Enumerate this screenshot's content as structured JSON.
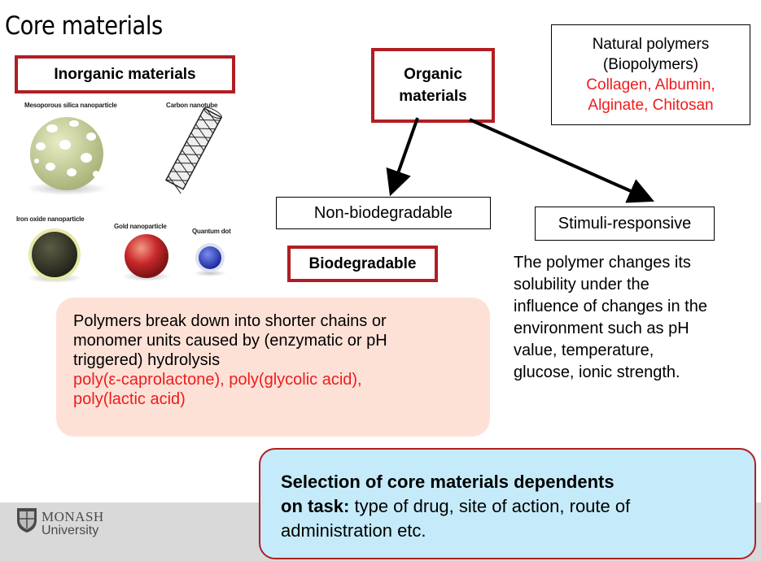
{
  "slide": {
    "title": "Core materials",
    "inorganic": {
      "heading": "Inorganic materials",
      "captions": {
        "silica": "Mesoporous silica nanoparticle",
        "nanotube": "Carbon nanotube",
        "iron": "Iron oxide nanoparticle",
        "gold": "Gold nanoparticle",
        "quantum": "Quantum dot"
      }
    },
    "organic": {
      "heading_line1": "Organic",
      "heading_line2": "materials"
    },
    "natural": {
      "line1": "Natural polymers",
      "line2": "(Biopolymers)",
      "line3": "Collagen, Albumin,",
      "line4": "Alginate, Chitosan"
    },
    "non_biodegradable": "Non-biodegradable",
    "stimuli": {
      "label": "Stimuli-responsive",
      "desc_lines": [
        "The polymer changes its",
        "solubility under the",
        "influence of changes in the",
        "environment such as pH",
        "value, temperature,",
        "glucose, ionic strength."
      ]
    },
    "biodegradable": {
      "label": "Biodegradable",
      "desc_lines": [
        "Polymers break down into shorter chains or",
        "monomer units caused by (enzymatic or pH",
        "triggered) hydrolysis"
      ],
      "examples_lines": [
        "poly(ε-caprolactone), poly(glycolic acid),",
        "poly(lactic acid)"
      ]
    },
    "selection": {
      "bold_line1": "Selection of core materials dependents",
      "bold_line2_prefix": "on task:",
      "rest_line2": " type of drug, site of action, route of",
      "line3": "administration etc."
    },
    "logo": {
      "line1": "MONASH",
      "line2": "University"
    },
    "colors": {
      "accent_red": "#b01e23",
      "highlight_red": "#ee1c1c",
      "bio_panel": "#fde1d7",
      "selection_panel": "#c5ebfa",
      "footer_gray": "#d9d9d9"
    }
  }
}
